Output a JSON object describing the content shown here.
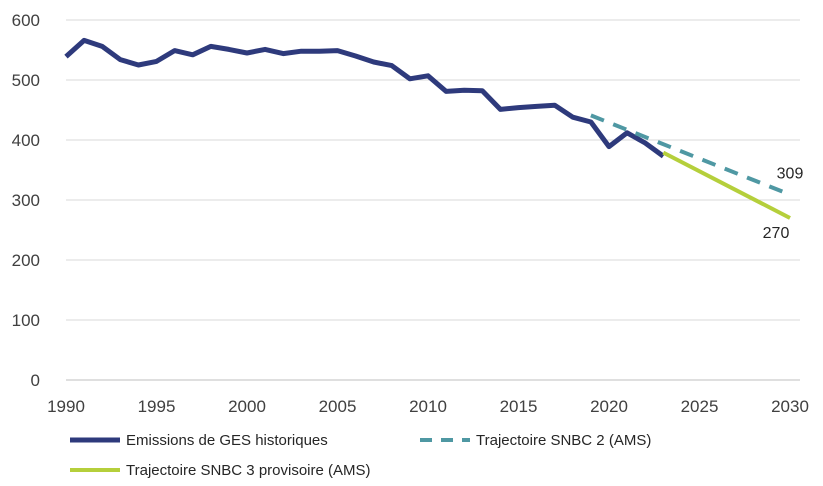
{
  "chart_data": {
    "type": "line",
    "title": "",
    "xlabel": "",
    "ylabel": "",
    "xlim": [
      1990,
      2030
    ],
    "ylim": [
      0,
      600
    ],
    "x_ticks": [
      1990,
      1995,
      2000,
      2005,
      2010,
      2015,
      2020,
      2025,
      2030
    ],
    "y_ticks": [
      0,
      100,
      200,
      300,
      400,
      500,
      600
    ],
    "grid": "horizontal",
    "legend_position": "bottom",
    "series": [
      {
        "name": "Emissions de GES historiques",
        "color": "#2e3a7c",
        "style": "solid",
        "x": [
          1990,
          1991,
          1992,
          1993,
          1994,
          1995,
          1996,
          1997,
          1998,
          1999,
          2000,
          2001,
          2002,
          2003,
          2004,
          2005,
          2006,
          2007,
          2008,
          2009,
          2010,
          2011,
          2012,
          2013,
          2014,
          2015,
          2016,
          2017,
          2018,
          2019,
          2020,
          2021,
          2022,
          2023
        ],
        "y": [
          539,
          566,
          556,
          534,
          525,
          531,
          549,
          542,
          556,
          551,
          545,
          551,
          544,
          548,
          548,
          549,
          540,
          530,
          524,
          502,
          507,
          481,
          483,
          482,
          451,
          454,
          456,
          458,
          438,
          430,
          389,
          412,
          395,
          373
        ]
      },
      {
        "name": "Trajectoire SNBC 2 (AMS)",
        "color": "#4f98a3",
        "style": "dashed",
        "x": [
          2019,
          2030
        ],
        "y": [
          441,
          309
        ]
      },
      {
        "name": "Trajectoire SNBC 3 provisoire (AMS)",
        "color": "#b5cf3b",
        "style": "solid",
        "x": [
          2023,
          2030
        ],
        "y": [
          379,
          270
        ]
      }
    ],
    "annotations": [
      {
        "text": "309",
        "x": 2030,
        "y": 309
      },
      {
        "text": "270",
        "x": 2030,
        "y": 270
      }
    ]
  }
}
